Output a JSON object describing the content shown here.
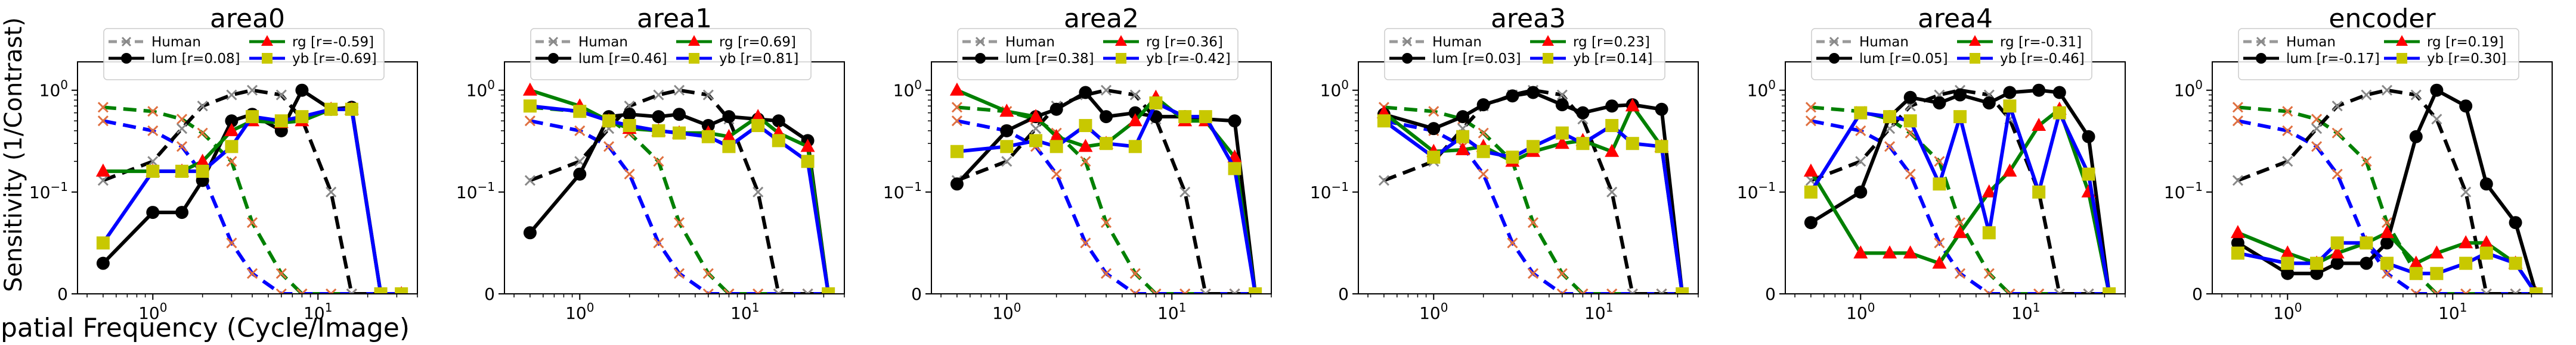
{
  "figure": {
    "ylabel": "Sensitivity (1/Contrast)",
    "xlabel": "Spatial Frequency (Cycle/Image)"
  },
  "chart_data": [
    {
      "type": "line",
      "title": "area0",
      "xscale": "log",
      "yscale": "symlog",
      "x": [
        0.5,
        1,
        1.5,
        2,
        3,
        4,
        6,
        8,
        12,
        16,
        24,
        32
      ],
      "series": [
        {
          "name": "Human",
          "color": "#000000",
          "style": "dashed",
          "marker": "x",
          "values": [
            0.13,
            0.2,
            0.42,
            0.7,
            0.9,
            1.0,
            0.9,
            0.52,
            0.1,
            0.0,
            0.0,
            0.0
          ]
        },
        {
          "name": "lum",
          "label": "lum [r=0.08]",
          "color": "#000000",
          "style": "solid",
          "marker": "circle",
          "values": [
            0.03,
            0.08,
            0.08,
            0.13,
            0.5,
            0.58,
            0.4,
            1.0,
            0.65,
            0.68,
            0.0,
            0.0
          ]
        },
        {
          "name": "rg",
          "label": "rg   [r=-0.59]",
          "color": "#008000",
          "style": "solid",
          "marker": "triangle",
          "values": [
            0.16,
            0.16,
            0.16,
            0.2,
            0.4,
            0.5,
            0.48,
            0.5,
            0.65,
            0.65,
            0.0,
            0.0
          ]
        },
        {
          "name": "yb",
          "label": "yb   [r=-0.69]",
          "color": "#0000ff",
          "style": "solid",
          "marker": "square",
          "values": [
            0.05,
            0.16,
            0.16,
            0.16,
            0.28,
            0.55,
            0.5,
            0.55,
            0.65,
            0.65,
            0.0,
            0.0
          ]
        },
        {
          "name": "human-rg",
          "color": "#008000",
          "style": "dashed",
          "marker": "x",
          "values": [
            0.68,
            0.62,
            0.52,
            0.38,
            0.2,
            0.07,
            0.02,
            0.0,
            0.0,
            0.0,
            0.0,
            0.0
          ]
        },
        {
          "name": "human-yb",
          "color": "#0000ff",
          "style": "dashed",
          "marker": "x",
          "values": [
            0.5,
            0.4,
            0.28,
            0.15,
            0.05,
            0.02,
            0.0,
            0.0,
            0.0,
            0.0,
            0.0,
            0.0
          ]
        }
      ]
    },
    {
      "type": "line",
      "title": "area1",
      "xscale": "log",
      "yscale": "symlog",
      "x": [
        0.5,
        1,
        1.5,
        2,
        3,
        4,
        6,
        8,
        12,
        16,
        24,
        32
      ],
      "series": [
        {
          "name": "Human",
          "color": "#000000",
          "style": "dashed",
          "marker": "x",
          "values": [
            0.13,
            0.2,
            0.42,
            0.7,
            0.9,
            1.0,
            0.9,
            0.52,
            0.1,
            0.0,
            0.0,
            0.0
          ]
        },
        {
          "name": "lum",
          "label": "lum [r=0.46]",
          "color": "#000000",
          "style": "solid",
          "marker": "circle",
          "values": [
            0.06,
            0.15,
            0.55,
            0.58,
            0.55,
            0.58,
            0.45,
            0.55,
            0.52,
            0.5,
            0.32,
            0.0
          ]
        },
        {
          "name": "rg",
          "label": "rg   [r=0.69]",
          "color": "#008000",
          "style": "solid",
          "marker": "triangle",
          "values": [
            1.0,
            0.7,
            0.5,
            0.42,
            0.4,
            0.38,
            0.38,
            0.35,
            0.55,
            0.38,
            0.28,
            0.0
          ]
        },
        {
          "name": "yb",
          "label": "yb   [r=0.81]",
          "color": "#0000ff",
          "style": "solid",
          "marker": "square",
          "values": [
            0.7,
            0.62,
            0.5,
            0.45,
            0.4,
            0.38,
            0.35,
            0.28,
            0.45,
            0.32,
            0.2,
            0.0
          ]
        },
        {
          "name": "human-rg",
          "color": "#008000",
          "style": "dashed",
          "marker": "x",
          "values": [
            0.68,
            0.62,
            0.52,
            0.38,
            0.2,
            0.07,
            0.02,
            0.0,
            0.0,
            0.0,
            0.0,
            0.0
          ]
        },
        {
          "name": "human-yb",
          "color": "#0000ff",
          "style": "dashed",
          "marker": "x",
          "values": [
            0.5,
            0.4,
            0.28,
            0.15,
            0.05,
            0.02,
            0.0,
            0.0,
            0.0,
            0.0,
            0.0,
            0.0
          ]
        }
      ]
    },
    {
      "type": "line",
      "title": "area2",
      "xscale": "log",
      "yscale": "symlog",
      "x": [
        0.5,
        1,
        1.5,
        2,
        3,
        4,
        6,
        8,
        12,
        16,
        24,
        32
      ],
      "series": [
        {
          "name": "Human",
          "color": "#000000",
          "style": "dashed",
          "marker": "x",
          "values": [
            0.13,
            0.2,
            0.42,
            0.7,
            0.9,
            1.0,
            0.9,
            0.52,
            0.1,
            0.0,
            0.0,
            0.0
          ]
        },
        {
          "name": "lum",
          "label": "lum [r=0.38]",
          "color": "#000000",
          "style": "solid",
          "marker": "circle",
          "values": [
            0.12,
            0.4,
            0.55,
            0.65,
            0.95,
            0.55,
            0.6,
            0.55,
            0.55,
            0.52,
            0.5,
            0.0
          ]
        },
        {
          "name": "rg",
          "label": "rg   [r=0.36]",
          "color": "#008000",
          "style": "solid",
          "marker": "triangle",
          "values": [
            1.0,
            0.62,
            0.55,
            0.35,
            0.28,
            0.3,
            0.5,
            0.85,
            0.5,
            0.5,
            0.22,
            0.0
          ]
        },
        {
          "name": "yb",
          "label": "yb   [r=-0.42]",
          "color": "#0000ff",
          "style": "solid",
          "marker": "square",
          "values": [
            0.25,
            0.28,
            0.32,
            0.28,
            0.45,
            0.3,
            0.28,
            0.75,
            0.55,
            0.55,
            0.17,
            0.0
          ]
        },
        {
          "name": "human-rg",
          "color": "#008000",
          "style": "dashed",
          "marker": "x",
          "values": [
            0.68,
            0.62,
            0.52,
            0.38,
            0.2,
            0.07,
            0.02,
            0.0,
            0.0,
            0.0,
            0.0,
            0.0
          ]
        },
        {
          "name": "human-yb",
          "color": "#0000ff",
          "style": "dashed",
          "marker": "x",
          "values": [
            0.5,
            0.4,
            0.28,
            0.15,
            0.05,
            0.02,
            0.0,
            0.0,
            0.0,
            0.0,
            0.0,
            0.0
          ]
        }
      ]
    },
    {
      "type": "line",
      "title": "area3",
      "xscale": "log",
      "yscale": "symlog",
      "x": [
        0.5,
        1,
        1.5,
        2,
        3,
        4,
        6,
        8,
        12,
        16,
        24,
        32
      ],
      "series": [
        {
          "name": "Human",
          "color": "#000000",
          "style": "dashed",
          "marker": "x",
          "values": [
            0.13,
            0.2,
            0.42,
            0.7,
            0.9,
            1.0,
            0.9,
            0.52,
            0.1,
            0.0,
            0.0,
            0.0
          ]
        },
        {
          "name": "lum",
          "label": "lum [r=0.03]",
          "color": "#000000",
          "style": "solid",
          "marker": "circle",
          "values": [
            0.58,
            0.42,
            0.55,
            0.72,
            0.88,
            0.95,
            0.72,
            0.6,
            0.7,
            0.72,
            0.65,
            0.0
          ]
        },
        {
          "name": "rg",
          "label": "rg   [r=0.23]",
          "color": "#008000",
          "style": "solid",
          "marker": "triangle",
          "values": [
            0.6,
            0.25,
            0.26,
            0.28,
            0.2,
            0.25,
            0.3,
            0.32,
            0.25,
            0.7,
            0.28,
            0.0
          ]
        },
        {
          "name": "yb",
          "label": "yb   [r=0.14]",
          "color": "#0000ff",
          "style": "solid",
          "marker": "square",
          "values": [
            0.5,
            0.22,
            0.35,
            0.25,
            0.22,
            0.28,
            0.38,
            0.3,
            0.45,
            0.3,
            0.28,
            0.0
          ]
        },
        {
          "name": "human-rg",
          "color": "#008000",
          "style": "dashed",
          "marker": "x",
          "values": [
            0.68,
            0.62,
            0.52,
            0.38,
            0.2,
            0.07,
            0.02,
            0.0,
            0.0,
            0.0,
            0.0,
            0.0
          ]
        },
        {
          "name": "human-yb",
          "color": "#0000ff",
          "style": "dashed",
          "marker": "x",
          "values": [
            0.5,
            0.4,
            0.28,
            0.15,
            0.05,
            0.02,
            0.0,
            0.0,
            0.0,
            0.0,
            0.0,
            0.0
          ]
        }
      ]
    },
    {
      "type": "line",
      "title": "area4",
      "xscale": "log",
      "yscale": "symlog",
      "x": [
        0.5,
        1,
        1.5,
        2,
        3,
        4,
        6,
        8,
        12,
        16,
        24,
        32
      ],
      "series": [
        {
          "name": "Human",
          "color": "#000000",
          "style": "dashed",
          "marker": "x",
          "values": [
            0.13,
            0.2,
            0.42,
            0.7,
            0.9,
            1.0,
            0.9,
            0.52,
            0.1,
            0.0,
            0.0,
            0.0
          ]
        },
        {
          "name": "lum",
          "label": "lum [r=0.05]",
          "color": "#000000",
          "style": "solid",
          "marker": "circle",
          "values": [
            0.07,
            0.1,
            0.55,
            0.85,
            0.75,
            0.9,
            0.75,
            0.95,
            1.0,
            0.95,
            0.35,
            0.0
          ]
        },
        {
          "name": "rg",
          "label": "rg   [r=-0.31]",
          "color": "#008000",
          "style": "solid",
          "marker": "triangle",
          "values": [
            0.16,
            0.04,
            0.04,
            0.04,
            0.03,
            0.06,
            0.1,
            0.16,
            0.45,
            0.65,
            0.1,
            0.0
          ]
        },
        {
          "name": "yb",
          "label": "yb   [r=-0.46]",
          "color": "#0000ff",
          "style": "solid",
          "marker": "square",
          "values": [
            0.1,
            0.6,
            0.55,
            0.5,
            0.12,
            0.55,
            0.06,
            0.7,
            0.1,
            0.6,
            0.15,
            0.0
          ]
        },
        {
          "name": "human-rg",
          "color": "#008000",
          "style": "dashed",
          "marker": "x",
          "values": [
            0.68,
            0.62,
            0.52,
            0.38,
            0.2,
            0.07,
            0.02,
            0.0,
            0.0,
            0.0,
            0.0,
            0.0
          ]
        },
        {
          "name": "human-yb",
          "color": "#0000ff",
          "style": "dashed",
          "marker": "x",
          "values": [
            0.5,
            0.4,
            0.28,
            0.15,
            0.05,
            0.02,
            0.0,
            0.0,
            0.0,
            0.0,
            0.0,
            0.0
          ]
        }
      ]
    },
    {
      "type": "line",
      "title": "encoder",
      "xscale": "log",
      "yscale": "symlog",
      "x": [
        0.5,
        1,
        1.5,
        2,
        3,
        4,
        6,
        8,
        12,
        16,
        24,
        32
      ],
      "series": [
        {
          "name": "Human",
          "color": "#000000",
          "style": "dashed",
          "marker": "x",
          "values": [
            0.13,
            0.2,
            0.42,
            0.7,
            0.9,
            1.0,
            0.9,
            0.52,
            0.1,
            0.0,
            0.0,
            0.0
          ]
        },
        {
          "name": "lum",
          "label": "lum [r=-0.17]",
          "color": "#000000",
          "style": "solid",
          "marker": "circle",
          "values": [
            0.05,
            0.02,
            0.02,
            0.03,
            0.03,
            0.05,
            0.35,
            1.0,
            0.7,
            0.12,
            0.07,
            0.0
          ]
        },
        {
          "name": "rg",
          "label": "rg   [r=0.19]",
          "color": "#008000",
          "style": "solid",
          "marker": "triangle",
          "values": [
            0.06,
            0.04,
            0.03,
            0.04,
            0.05,
            0.06,
            0.03,
            0.04,
            0.05,
            0.05,
            0.03,
            0.0
          ]
        },
        {
          "name": "yb",
          "label": "yb   [r=0.30]",
          "color": "#0000ff",
          "style": "solid",
          "marker": "square",
          "values": [
            0.04,
            0.03,
            0.03,
            0.05,
            0.05,
            0.03,
            0.02,
            0.02,
            0.03,
            0.04,
            0.03,
            0.0
          ]
        },
        {
          "name": "human-rg",
          "color": "#008000",
          "style": "dashed",
          "marker": "x",
          "values": [
            0.68,
            0.62,
            0.52,
            0.38,
            0.2,
            0.07,
            0.02,
            0.0,
            0.0,
            0.0,
            0.0,
            0.0
          ]
        },
        {
          "name": "human-yb",
          "color": "#0000ff",
          "style": "dashed",
          "marker": "x",
          "values": [
            0.5,
            0.4,
            0.28,
            0.15,
            0.05,
            0.02,
            0.0,
            0.0,
            0.0,
            0.0,
            0.0,
            0.0
          ]
        }
      ]
    }
  ]
}
